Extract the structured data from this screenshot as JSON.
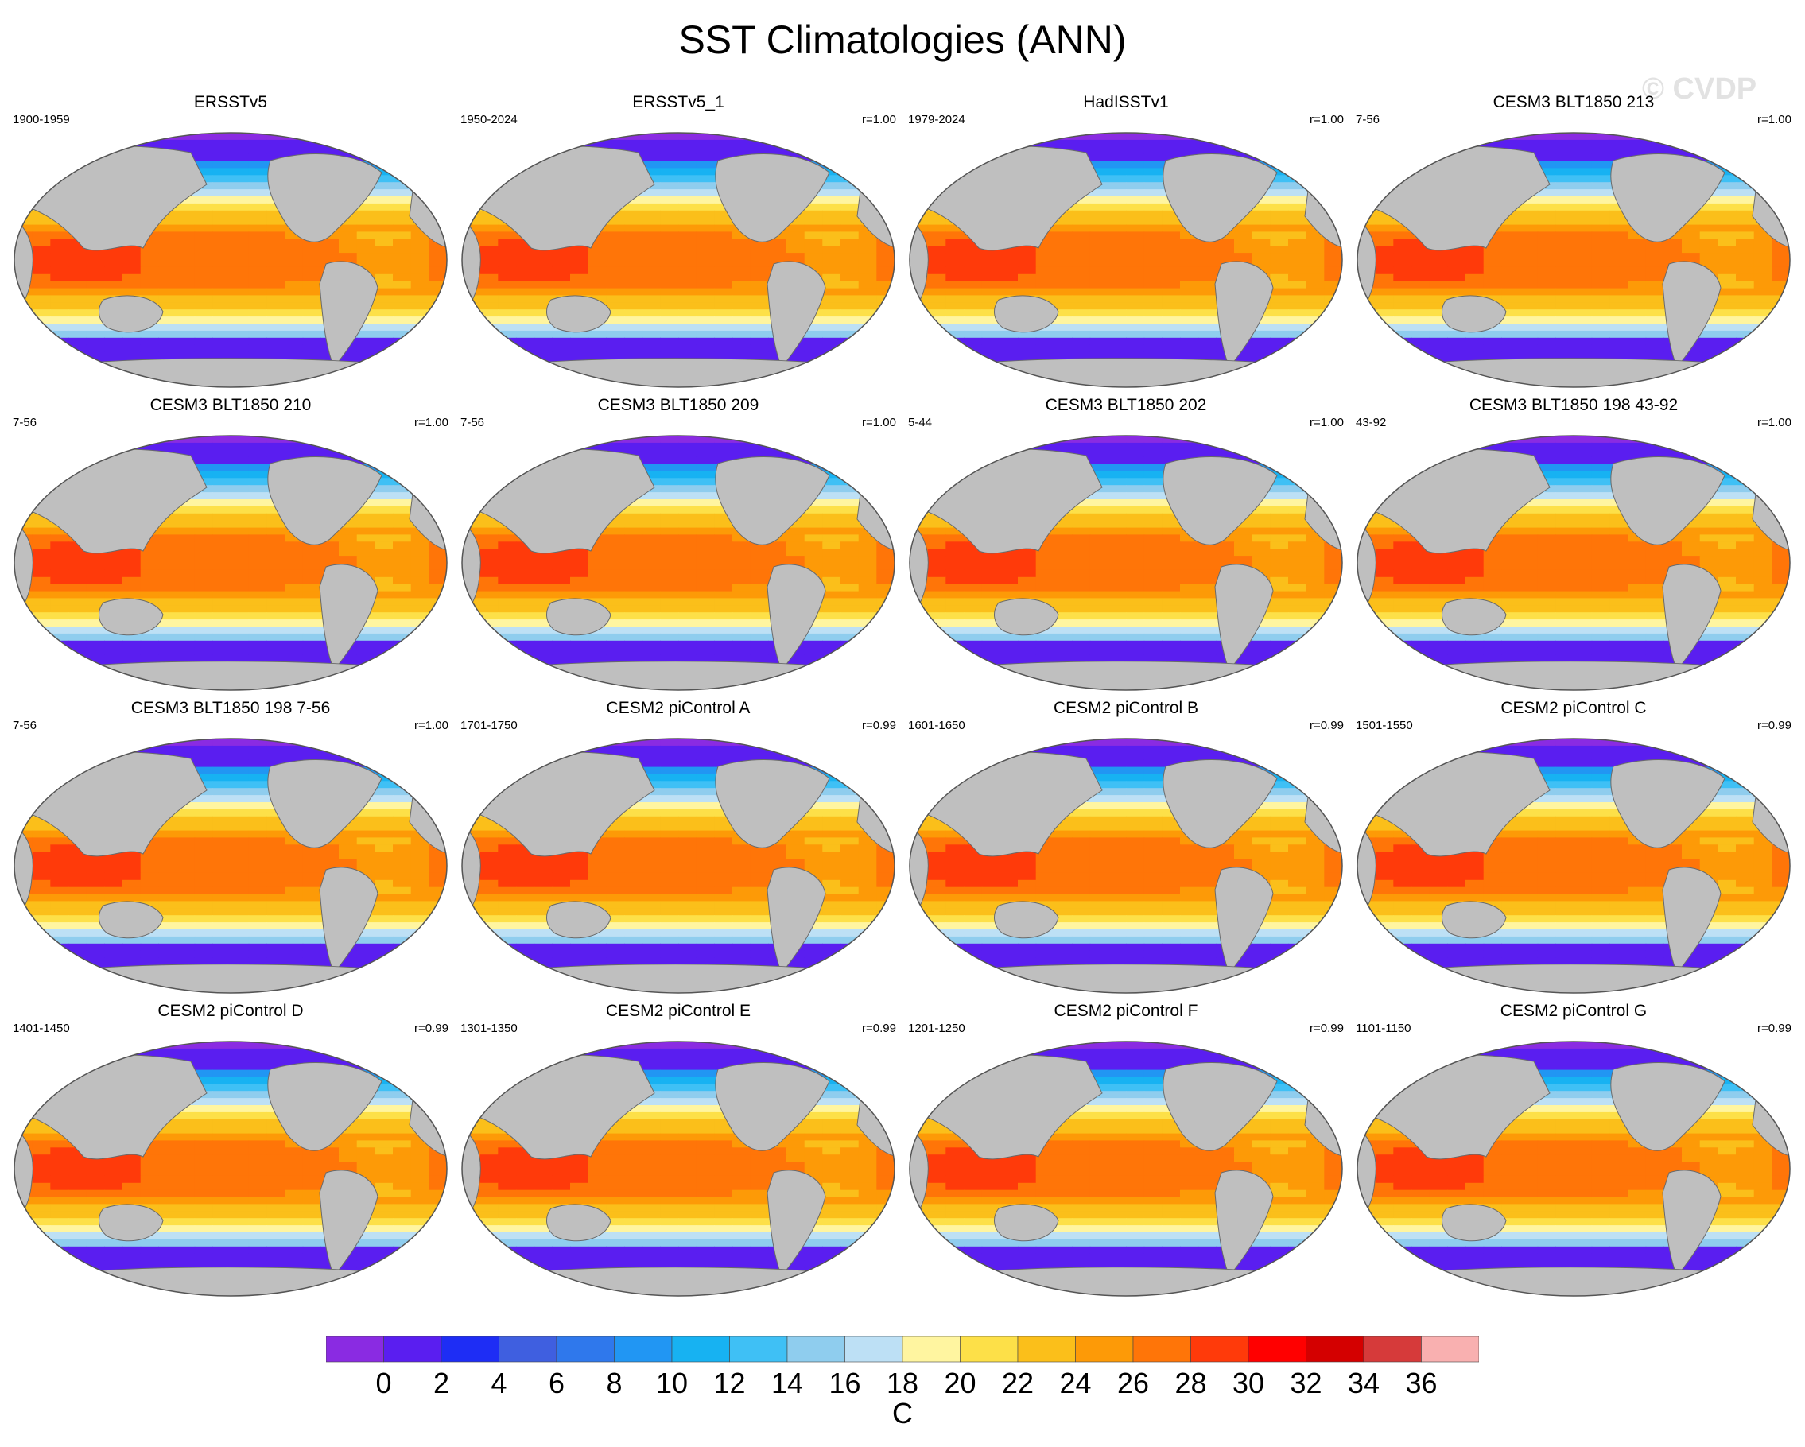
{
  "title": "SST Climatologies (ANN)",
  "watermark": "© CVDP",
  "panels": [
    {
      "title": "ERSSTv5",
      "period": "1900-1959",
      "corr": ""
    },
    {
      "title": "ERSSTv5_1",
      "period": "1950-2024",
      "corr": "r=1.00"
    },
    {
      "title": "HadISSTv1",
      "period": "1979-2024",
      "corr": "r=1.00"
    },
    {
      "title": "CESM3 BLT1850 213",
      "period": "7-56",
      "corr": "r=1.00"
    },
    {
      "title": "CESM3 BLT1850 210",
      "period": "7-56",
      "corr": "r=1.00"
    },
    {
      "title": "CESM3 BLT1850 209",
      "period": "7-56",
      "corr": "r=1.00"
    },
    {
      "title": "CESM3 BLT1850 202",
      "period": "5-44",
      "corr": "r=1.00"
    },
    {
      "title": "CESM3 BLT1850 198 43-92",
      "period": "43-92",
      "corr": "r=1.00"
    },
    {
      "title": "CESM3 BLT1850 198 7-56",
      "period": "7-56",
      "corr": "r=1.00"
    },
    {
      "title": "CESM2 piControl A",
      "period": "1701-1750",
      "corr": "r=0.99"
    },
    {
      "title": "CESM2 piControl B",
      "period": "1601-1650",
      "corr": "r=0.99"
    },
    {
      "title": "CESM2 piControl C",
      "period": "1501-1550",
      "corr": "r=0.99"
    },
    {
      "title": "CESM2 piControl D",
      "period": "1401-1450",
      "corr": "r=0.99"
    },
    {
      "title": "CESM2 piControl E",
      "period": "1301-1350",
      "corr": "r=0.99"
    },
    {
      "title": "CESM2 piControl F",
      "period": "1201-1250",
      "corr": "r=0.99"
    },
    {
      "title": "CESM2 piControl G",
      "period": "1101-1150",
      "corr": "r=0.99"
    }
  ],
  "colorbar": {
    "units": "C",
    "colors": [
      "#8a2be2",
      "#5a1ef0",
      "#1e2df5",
      "#3f5fe0",
      "#2f78ec",
      "#2196f3",
      "#17b2f2",
      "#3fc0f5",
      "#8fcdee",
      "#bde0f5",
      "#fff5a0",
      "#fde048",
      "#fbbf1a",
      "#fd9a07",
      "#ff7508",
      "#ff3a0a",
      "#ff0000",
      "#d40000",
      "#d63a3a",
      "#f9b0b0"
    ],
    "ticks": [
      "0",
      "2",
      "4",
      "6",
      "8",
      "10",
      "12",
      "14",
      "16",
      "18",
      "20",
      "22",
      "24",
      "26",
      "28",
      "30",
      "32",
      "34",
      "36"
    ]
  },
  "map_colors": {
    "land": "#bfbfbf",
    "outline": "#555555"
  }
}
